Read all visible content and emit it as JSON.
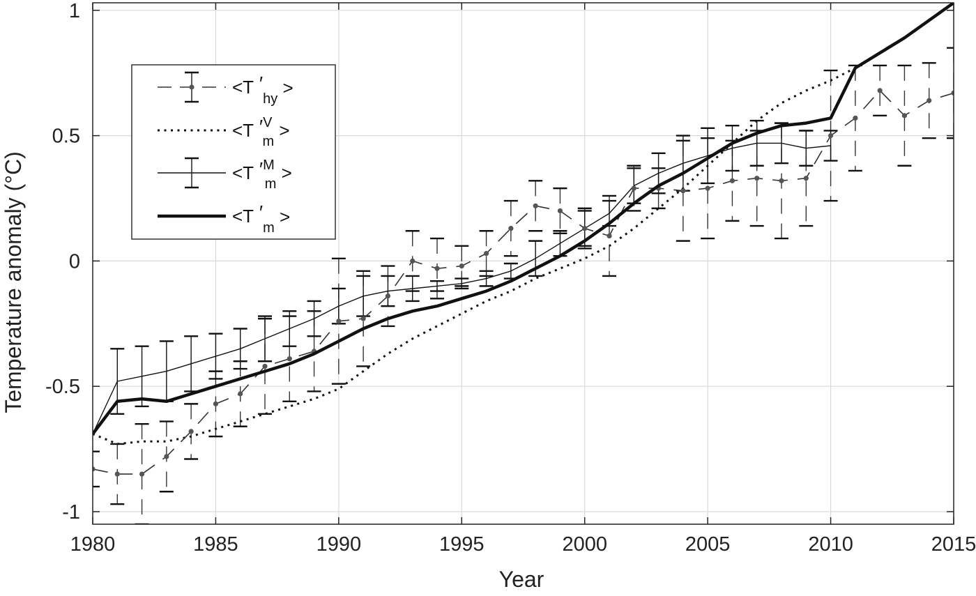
{
  "chart_data": {
    "type": "line",
    "xlabel": "Year",
    "ylabel": "Temperature anomaly (°C)",
    "xlim": [
      1980,
      2015
    ],
    "ylim": [
      -1.05,
      1.03
    ],
    "grid": true,
    "legend_placement": "top-left",
    "xticks": [
      "1980",
      "1985",
      "1990",
      "1995",
      "2000",
      "2005",
      "2010",
      "2015"
    ],
    "yticks": [
      "-1",
      "-0.5",
      "0",
      "0.5",
      "1"
    ],
    "x": [
      1980,
      1981,
      1982,
      1983,
      1984,
      1985,
      1986,
      1987,
      1988,
      1989,
      1990,
      1991,
      1992,
      1993,
      1994,
      1995,
      1996,
      1997,
      1998,
      1999,
      2000,
      2001,
      2002,
      2003,
      2004,
      2005,
      2006,
      2007,
      2008,
      2009,
      2010,
      2011,
      2012,
      2013,
      2014,
      2015
    ],
    "series": [
      {
        "name_main": "<T",
        "name_prime": "′",
        "name_sub": "hy",
        "name_sup": "",
        "name_end": ">",
        "style": "dashed-dots",
        "color": "#333333",
        "values": [
          -0.83,
          -0.85,
          -0.85,
          -0.78,
          -0.68,
          -0.57,
          -0.53,
          -0.42,
          -0.39,
          -0.36,
          -0.24,
          -0.23,
          -0.14,
          0.0,
          -0.03,
          -0.02,
          0.03,
          0.13,
          0.22,
          0.2,
          0.13,
          0.1,
          0.29,
          0.29,
          0.28,
          0.29,
          0.32,
          0.33,
          0.32,
          0.33,
          0.5,
          0.57,
          0.68,
          0.58,
          0.64,
          0.67
        ],
        "err": [
          0.07,
          0.12,
          0.2,
          0.14,
          0.11,
          0.13,
          0.13,
          0.19,
          0.17,
          0.16,
          0.25,
          0.19,
          0.12,
          0.12,
          0.12,
          0.08,
          0.09,
          0.11,
          0.1,
          0.09,
          0.08,
          0.16,
          0.09,
          0.08,
          0.2,
          0.2,
          0.16,
          0.19,
          0.23,
          0.19,
          0.26,
          0.21,
          0.1,
          0.2,
          0.15,
          0.18
        ]
      },
      {
        "name_main": "<T",
        "name_prime": "′",
        "name_sub": "m",
        "name_sup": "V",
        "name_end": ">",
        "style": "dotted",
        "color": "#111111",
        "values": [
          -0.69,
          -0.73,
          -0.72,
          -0.72,
          -0.7,
          -0.67,
          -0.64,
          -0.61,
          -0.58,
          -0.55,
          -0.51,
          -0.44,
          -0.37,
          -0.31,
          -0.26,
          -0.21,
          -0.16,
          -0.12,
          -0.07,
          -0.03,
          0.01,
          0.06,
          0.13,
          0.21,
          0.29,
          0.38,
          0.47,
          0.56,
          0.63,
          0.68,
          0.72,
          0.77,
          null,
          null,
          null,
          null
        ]
      },
      {
        "name_main": "<T",
        "name_prime": "′",
        "name_sub": "m",
        "name_sup": "M",
        "name_end": ">",
        "style": "thin",
        "color": "#111111",
        "values": [
          -0.69,
          -0.48,
          -0.46,
          -0.44,
          -0.41,
          -0.38,
          -0.35,
          -0.31,
          -0.27,
          -0.23,
          -0.18,
          -0.14,
          -0.12,
          -0.11,
          -0.1,
          -0.09,
          -0.07,
          -0.04,
          0.01,
          0.07,
          0.13,
          0.19,
          0.3,
          0.35,
          0.39,
          0.42,
          0.45,
          0.47,
          0.47,
          0.45,
          0.46,
          null,
          null,
          null,
          null,
          null
        ],
        "err": [
          0.0,
          0.13,
          0.12,
          0.12,
          0.11,
          0.09,
          0.08,
          0.09,
          0.07,
          0.07,
          0.07,
          0.08,
          0.06,
          0.05,
          0.02,
          0.02,
          0.03,
          0.03,
          0.07,
          0.05,
          0.07,
          0.05,
          0.07,
          0.08,
          0.11,
          0.11,
          0.09,
          0.09,
          0.08,
          0.07,
          0.06,
          null,
          null,
          null,
          null,
          null
        ]
      },
      {
        "name_main": "<T",
        "name_prime": "′",
        "name_sub": "m",
        "name_sup": "",
        "name_end": ">",
        "style": "thick",
        "color": "#111111",
        "values": [
          -0.69,
          -0.56,
          -0.55,
          -0.56,
          -0.53,
          -0.5,
          -0.47,
          -0.44,
          -0.41,
          -0.37,
          -0.32,
          -0.27,
          -0.23,
          -0.2,
          -0.18,
          -0.15,
          -0.12,
          -0.08,
          -0.03,
          0.02,
          0.08,
          0.15,
          0.23,
          0.3,
          0.35,
          0.41,
          0.47,
          0.51,
          0.54,
          0.55,
          0.57,
          0.77,
          0.83,
          0.89,
          0.96,
          1.03
        ]
      }
    ]
  }
}
